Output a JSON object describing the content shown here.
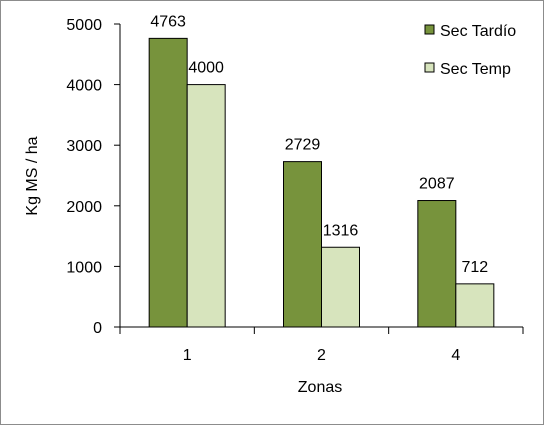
{
  "chart_data": {
    "type": "bar",
    "categories": [
      "1",
      "2",
      "4"
    ],
    "series": [
      {
        "name": "Sec Tardío",
        "values": [
          4763,
          2729,
          2087
        ],
        "color": "#77933c"
      },
      {
        "name": "Sec Temp",
        "values": [
          4000,
          1316,
          712
        ],
        "color": "#d7e4bd"
      }
    ],
    "data_labels": [
      [
        "4763",
        "2729",
        "2087"
      ],
      [
        "4000",
        "1316",
        "712"
      ]
    ],
    "xlabel": "Zonas",
    "ylabel": "Kg MS / ha",
    "ylim": [
      0,
      5000
    ],
    "yticks": [
      0,
      1000,
      2000,
      3000,
      4000,
      5000
    ],
    "grid": false,
    "legend_position": "top-right",
    "bar_outline_color": "#000000"
  }
}
